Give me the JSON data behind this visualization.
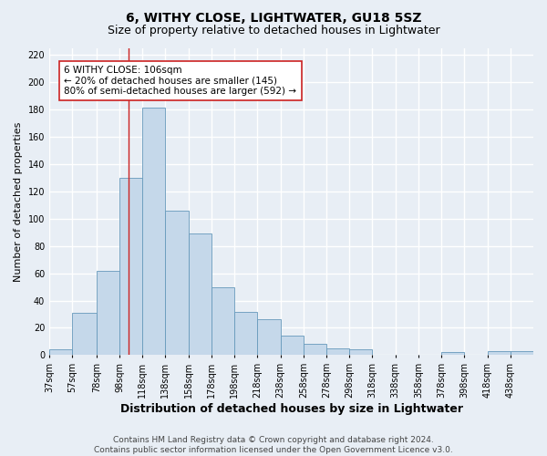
{
  "title": "6, WITHY CLOSE, LIGHTWATER, GU18 5SZ",
  "subtitle": "Size of property relative to detached houses in Lightwater",
  "xlabel": "Distribution of detached houses by size in Lightwater",
  "ylabel": "Number of detached properties",
  "bar_labels": [
    "37sqm",
    "57sqm",
    "78sqm",
    "98sqm",
    "118sqm",
    "138sqm",
    "158sqm",
    "178sqm",
    "198sqm",
    "218sqm",
    "238sqm",
    "258sqm",
    "278sqm",
    "298sqm",
    "318sqm",
    "338sqm",
    "358sqm",
    "378sqm",
    "398sqm",
    "418sqm",
    "438sqm"
  ],
  "bar_values": [
    4,
    31,
    62,
    130,
    181,
    106,
    89,
    50,
    32,
    26,
    14,
    8,
    5,
    4,
    0,
    0,
    0,
    2,
    0,
    3,
    3
  ],
  "bar_color": "#c5d8ea",
  "bar_edge_color": "#6699bb",
  "bin_edges": [
    37,
    57,
    78,
    98,
    118,
    138,
    158,
    178,
    198,
    218,
    238,
    258,
    278,
    298,
    318,
    338,
    358,
    378,
    398,
    418,
    438,
    458
  ],
  "ylim": [
    0,
    225
  ],
  "yticks": [
    0,
    20,
    40,
    60,
    80,
    100,
    120,
    140,
    160,
    180,
    200,
    220
  ],
  "vline_x": 106,
  "vline_color": "#cc2222",
  "annotation_text": "6 WITHY CLOSE: 106sqm\n← 20% of detached houses are smaller (145)\n80% of semi-detached houses are larger (592) →",
  "annotation_box_color": "#ffffff",
  "annotation_box_edge_color": "#cc2222",
  "background_color": "#e8eef5",
  "plot_bg_color": "#e8eef5",
  "grid_color": "#ffffff",
  "footer_text": "Contains HM Land Registry data © Crown copyright and database right 2024.\nContains public sector information licensed under the Open Government Licence v3.0.",
  "title_fontsize": 10,
  "subtitle_fontsize": 9,
  "xlabel_fontsize": 9,
  "ylabel_fontsize": 8,
  "tick_fontsize": 7,
  "annotation_fontsize": 7.5,
  "footer_fontsize": 6.5
}
